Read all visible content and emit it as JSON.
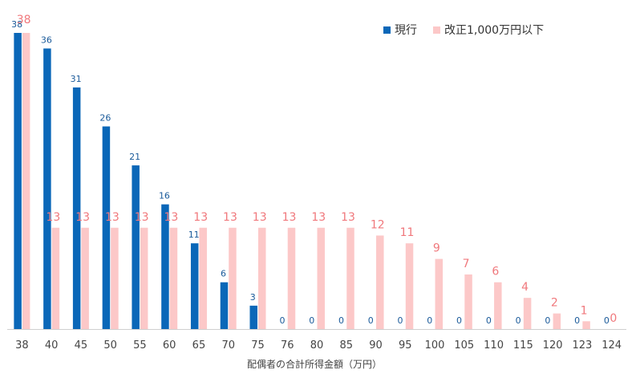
{
  "colors": {
    "series_a": "#0a67b8",
    "series_b": "#fcc8c8",
    "series_b_label": "#f0787c",
    "axis": "#cfcfcf"
  },
  "chart_data": {
    "type": "bar",
    "categories": [
      "38",
      "40",
      "45",
      "50",
      "55",
      "60",
      "65",
      "70",
      "75",
      "76",
      "80",
      "85",
      "90",
      "95",
      "100",
      "105",
      "110",
      "115",
      "120",
      "123",
      "124"
    ],
    "series": [
      {
        "name": "現行",
        "values": [
          38,
          36,
          31,
          26,
          21,
          16,
          11,
          6,
          3,
          0,
          0,
          0,
          0,
          0,
          0,
          0,
          0,
          0,
          0,
          0,
          0
        ]
      },
      {
        "name": "改正1,000万円以下",
        "values": [
          38,
          13,
          13,
          13,
          13,
          13,
          13,
          13,
          13,
          13,
          13,
          13,
          12,
          11,
          9,
          7,
          6,
          4,
          2,
          1,
          0
        ]
      }
    ],
    "xlabel": "配偶者の合計所得金額（万円）",
    "ylabel": "",
    "ylim": [
      0,
      38
    ],
    "grid": false,
    "legend_position": "top-right"
  }
}
